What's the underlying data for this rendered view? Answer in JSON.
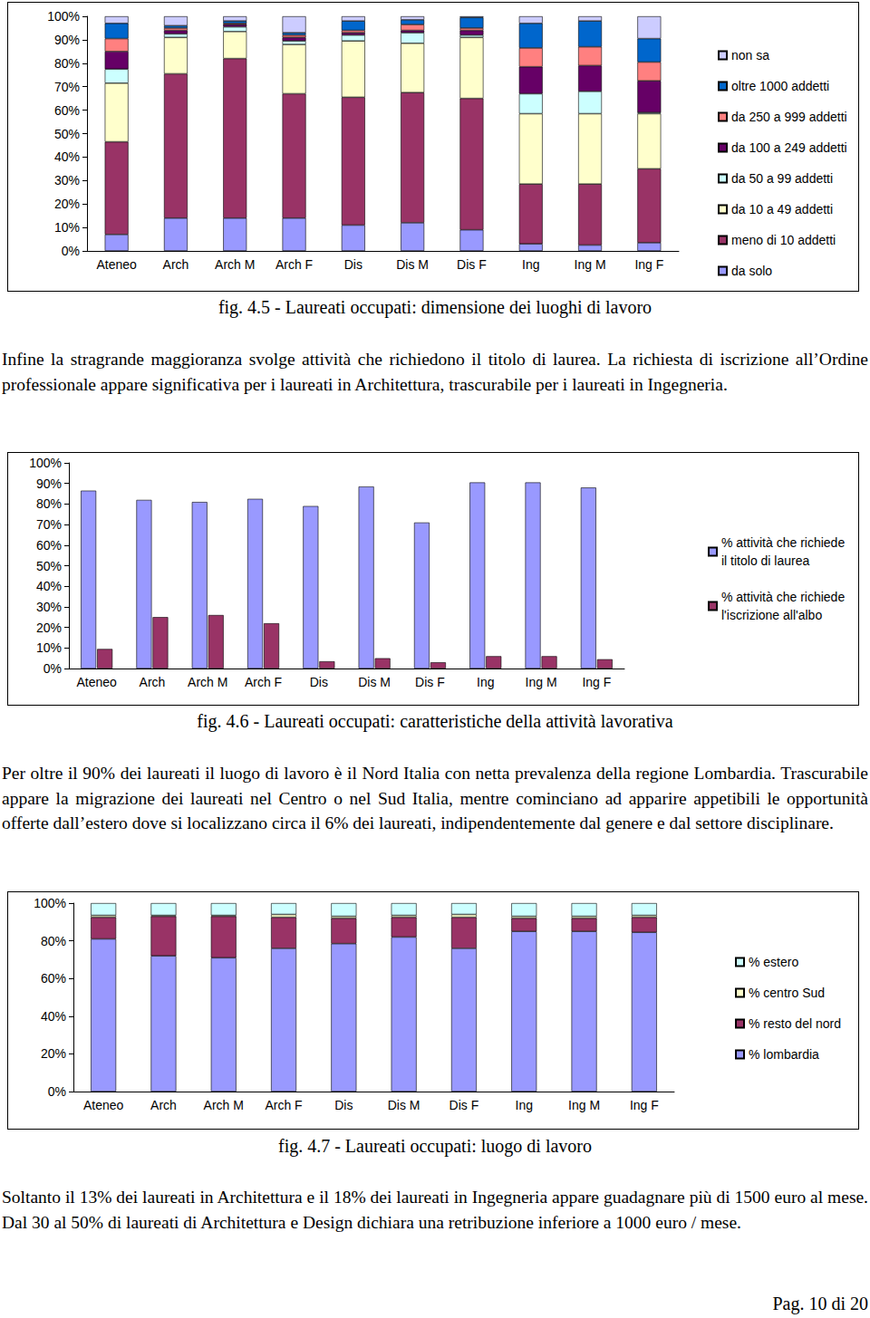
{
  "chart_data": [
    {
      "type": "bar",
      "title": "fig. 4.5 - Laureati occupati: dimensione dei luoghi di lavoro",
      "stacked": true,
      "legend": "right",
      "grid": false,
      "categories": [
        "Ateneo",
        "Arch",
        "Arch M",
        "Arch F",
        "Dis",
        "Dis M",
        "Dis F",
        "Ing",
        "Ing M",
        "Ing F"
      ],
      "ylim": [
        0,
        100
      ],
      "yticks": [
        {
          "value": 0,
          "label": "0%"
        },
        {
          "value": 10,
          "label": "10%"
        },
        {
          "value": 20,
          "label": "20%"
        },
        {
          "value": 30,
          "label": "30%"
        },
        {
          "value": 40,
          "label": "40%"
        },
        {
          "value": 50,
          "label": "50%"
        },
        {
          "value": 60,
          "label": "60%"
        },
        {
          "value": 70,
          "label": "70%"
        },
        {
          "value": 80,
          "label": "80%"
        },
        {
          "value": 90,
          "label": "90%"
        },
        {
          "value": 100,
          "label": "100%"
        }
      ],
      "series": [
        {
          "name": "da solo",
          "color": "#9999FF",
          "values": [
            7,
            14,
            14,
            14,
            11,
            12,
            9,
            3,
            2.5,
            3.5
          ]
        },
        {
          "name": "meno di 10 addetti",
          "color": "#993366",
          "values": [
            39.5,
            61.5,
            68,
            53,
            54.5,
            55.5,
            56,
            25.5,
            26,
            31.5
          ]
        },
        {
          "name": "da 10 a 49 addetti",
          "color": "#FFFFCC",
          "values": [
            25,
            15.5,
            11.5,
            21,
            24,
            21,
            26,
            30,
            30,
            23.5
          ]
        },
        {
          "name": "da 50 a 99 addetti",
          "color": "#CCFFFF",
          "values": [
            6,
            1.5,
            2,
            1.5,
            2.5,
            4.5,
            1,
            8.5,
            9.5,
            0.5
          ]
        },
        {
          "name": "da 100 a 249 addetti",
          "color": "#660066",
          "values": [
            7.5,
            1.5,
            1,
            1.5,
            1,
            1,
            2,
            11.5,
            11,
            13.5
          ]
        },
        {
          "name": "da 250 a 999 addetti",
          "color": "#FF8080",
          "values": [
            5.5,
            1,
            0.5,
            1,
            1,
            2.5,
            1,
            8,
            8,
            8
          ]
        },
        {
          "name": "oltre 1000 addetti",
          "color": "#0066CC",
          "values": [
            6.5,
            1,
            1,
            1,
            4,
            2,
            4.5,
            10.5,
            11,
            10
          ]
        },
        {
          "name": "non sa",
          "color": "#CCCCFF",
          "values": [
            3,
            4,
            2,
            7,
            2,
            1.5,
            0.5,
            3,
            2,
            9.5
          ]
        }
      ]
    },
    {
      "type": "bar",
      "title": "fig. 4.6 - Laureati occupati: caratteristiche della attività lavorativa",
      "stacked": false,
      "legend": "right",
      "grid": false,
      "categories": [
        "Ateneo",
        "Arch",
        "Arch M",
        "Arch F",
        "Dis",
        "Dis M",
        "Dis F",
        "Ing",
        "Ing M",
        "Ing F"
      ],
      "ylim": [
        0,
        100
      ],
      "yticks": [
        {
          "value": 0,
          "label": "0%"
        },
        {
          "value": 10,
          "label": "10%"
        },
        {
          "value": 20,
          "label": "20%"
        },
        {
          "value": 30,
          "label": "30%"
        },
        {
          "value": 40,
          "label": "40%"
        },
        {
          "value": 50,
          "label": "50%"
        },
        {
          "value": 60,
          "label": "60%"
        },
        {
          "value": 70,
          "label": "70%"
        },
        {
          "value": 80,
          "label": "80%"
        },
        {
          "value": 90,
          "label": "90%"
        },
        {
          "value": 100,
          "label": "100%"
        }
      ],
      "series": [
        {
          "name": "% attività che richiede il titolo di laurea",
          "color": "#9999FF",
          "values": [
            86.5,
            82,
            81,
            82.5,
            79,
            88.5,
            71,
            90.5,
            90.5,
            88
          ]
        },
        {
          "name": "% attività che richiede l'iscrizione all'albo",
          "color": "#993366",
          "values": [
            9.5,
            25,
            26,
            22,
            3.5,
            5,
            3,
            6,
            6,
            4.5
          ]
        }
      ]
    },
    {
      "type": "bar",
      "title": "fig. 4.7 - Laureati occupati: luogo di lavoro",
      "stacked": true,
      "legend": "right",
      "grid": false,
      "categories": [
        "Ateneo",
        "Arch",
        "Arch M",
        "Arch F",
        "Dis",
        "Dis M",
        "Dis F",
        "Ing",
        "Ing M",
        "Ing F"
      ],
      "ylim": [
        0,
        100
      ],
      "yticks": [
        {
          "value": 0,
          "label": "0%"
        },
        {
          "value": 20,
          "label": "20%"
        },
        {
          "value": 40,
          "label": "40%"
        },
        {
          "value": 60,
          "label": "60%"
        },
        {
          "value": 80,
          "label": "80%"
        },
        {
          "value": 100,
          "label": "100%"
        }
      ],
      "series": [
        {
          "name": "% lombardia",
          "color": "#9999FF",
          "values": [
            81,
            72,
            71,
            76,
            78.5,
            82,
            76,
            85,
            85,
            84.5
          ]
        },
        {
          "name": "% resto del nord",
          "color": "#993366",
          "values": [
            11.5,
            21,
            22,
            16.5,
            13.5,
            10.5,
            16.5,
            7,
            7,
            8
          ]
        },
        {
          "name": "% centro Sud",
          "color": "#FFFFCC",
          "values": [
            1,
            0.5,
            0.5,
            1.5,
            1,
            1,
            1.5,
            1,
            1,
            1
          ]
        },
        {
          "name": "% estero",
          "color": "#CCFFFF",
          "values": [
            6.5,
            6.5,
            6.5,
            6,
            7,
            6.5,
            6,
            7,
            7,
            6.5
          ]
        }
      ]
    }
  ],
  "text": {
    "paragraphs": [
      "Infine la stragrande maggioranza svolge attività che richiedono il titolo di laurea. La richiesta di iscrizione all’Ordine professionale appare significativa per i laureati in Architettura, trascurabile per i laureati in Ingegneria.",
      "Per oltre il 90% dei laureati il luogo di lavoro è il Nord Italia con netta prevalenza della regione Lombardia. Trascurabile appare la migrazione dei laureati nel Centro o nel Sud Italia, mentre cominciano ad apparire appetibili le opportunità offerte dall’estero dove si localizzano circa il 6% dei laureati, indipendentemente dal genere e dal settore disciplinare.",
      "Soltanto il 13% dei laureati in Architettura e il 18% dei laureati in Ingegneria appare guadagnare più di 1500 euro al mese. Dal 30 al 50% di laureati di Architettura e Design dichiara una retribuzione inferiore a 1000 euro / mese."
    ],
    "page": "Pag. 10 di 20"
  }
}
